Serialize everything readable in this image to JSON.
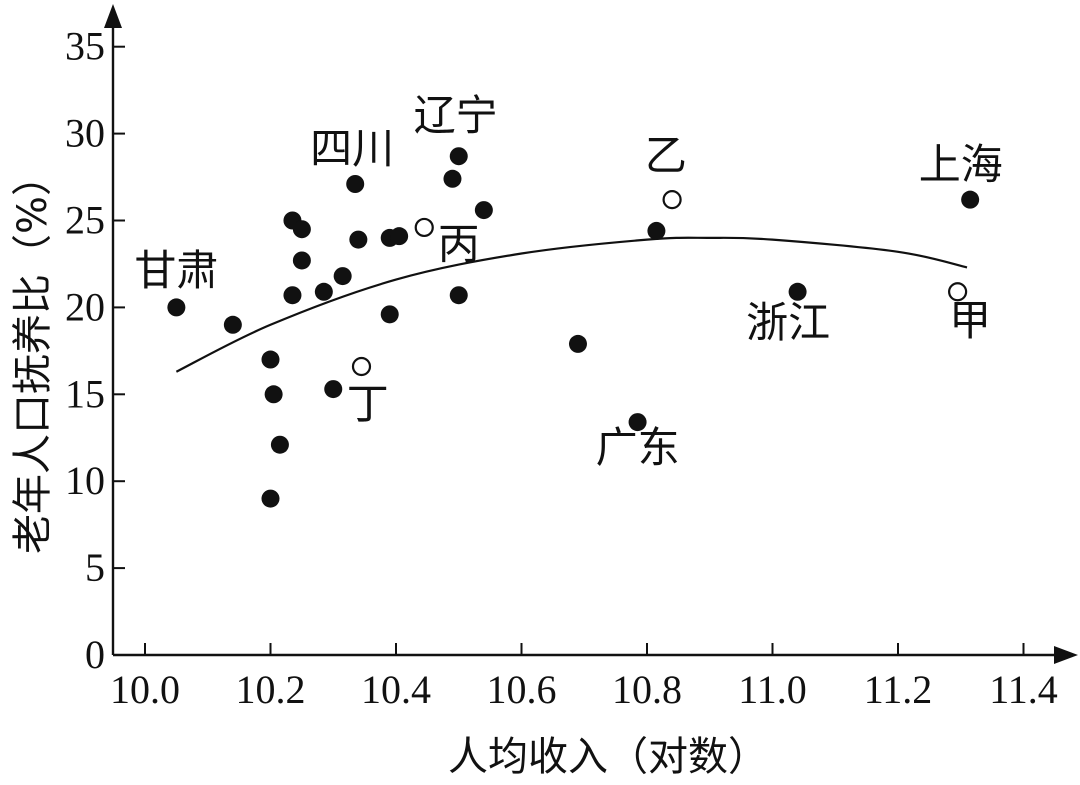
{
  "chart_data": {
    "type": "scatter",
    "title": "",
    "xlabel": "人均收入（对数）",
    "ylabel": "老年人口抚养比（%）",
    "xlim": [
      9.95,
      11.45
    ],
    "ylim": [
      0,
      37
    ],
    "x_ticks": [
      "10.0",
      "10.2",
      "10.4",
      "10.6",
      "10.8",
      "11.0",
      "11.2",
      "11.4"
    ],
    "y_ticks": [
      "0",
      "5",
      "10",
      "15",
      "20",
      "25",
      "30",
      "35"
    ],
    "grid": false,
    "legend": "none",
    "series": [
      {
        "marker": "filled",
        "points": [
          {
            "x": 10.05,
            "y": 20.0
          },
          {
            "x": 10.14,
            "y": 19.0
          },
          {
            "x": 10.2,
            "y": 17.0
          },
          {
            "x": 10.2,
            "y": 9.0
          },
          {
            "x": 10.205,
            "y": 15.0
          },
          {
            "x": 10.215,
            "y": 12.1
          },
          {
            "x": 10.235,
            "y": 25.0
          },
          {
            "x": 10.235,
            "y": 20.7
          },
          {
            "x": 10.25,
            "y": 24.5
          },
          {
            "x": 10.25,
            "y": 22.7
          },
          {
            "x": 10.285,
            "y": 20.9
          },
          {
            "x": 10.3,
            "y": 15.3
          },
          {
            "x": 10.315,
            "y": 21.8
          },
          {
            "x": 10.335,
            "y": 27.1
          },
          {
            "x": 10.34,
            "y": 23.9
          },
          {
            "x": 10.39,
            "y": 19.6
          },
          {
            "x": 10.39,
            "y": 24.0
          },
          {
            "x": 10.405,
            "y": 24.1
          },
          {
            "x": 10.49,
            "y": 27.4
          },
          {
            "x": 10.5,
            "y": 28.7
          },
          {
            "x": 10.5,
            "y": 20.7
          },
          {
            "x": 10.54,
            "y": 25.6
          },
          {
            "x": 10.69,
            "y": 17.9
          },
          {
            "x": 10.785,
            "y": 13.4
          },
          {
            "x": 10.815,
            "y": 24.4
          },
          {
            "x": 11.04,
            "y": 20.9
          },
          {
            "x": 11.315,
            "y": 26.2
          }
        ]
      },
      {
        "marker": "hollow",
        "points": [
          {
            "x": 10.445,
            "y": 24.6
          },
          {
            "x": 10.345,
            "y": 16.6
          },
          {
            "x": 10.84,
            "y": 26.2
          },
          {
            "x": 11.295,
            "y": 20.9
          }
        ]
      }
    ],
    "trend_curve": [
      {
        "x": 10.05,
        "y": 16.3
      },
      {
        "x": 10.2,
        "y": 19.0
      },
      {
        "x": 10.4,
        "y": 21.6
      },
      {
        "x": 10.6,
        "y": 23.1
      },
      {
        "x": 10.8,
        "y": 23.9
      },
      {
        "x": 10.9,
        "y": 24.0
      },
      {
        "x": 11.0,
        "y": 23.9
      },
      {
        "x": 11.2,
        "y": 23.2
      },
      {
        "x": 11.31,
        "y": 22.3
      }
    ],
    "annotations": [
      {
        "text": "甘肃",
        "x": 10.05,
        "y": 21.3
      },
      {
        "text": "四川",
        "x": 10.33,
        "y": 28.3
      },
      {
        "text": "辽宁",
        "x": 10.495,
        "y": 30.2
      },
      {
        "text": "丙",
        "x": 10.5,
        "y": 22.8
      },
      {
        "text": "丁",
        "x": 10.355,
        "y": 13.6
      },
      {
        "text": "乙",
        "x": 10.83,
        "y": 27.9
      },
      {
        "text": "上海",
        "x": 11.3,
        "y": 27.4
      },
      {
        "text": "浙江",
        "x": 11.025,
        "y": 18.3
      },
      {
        "text": "甲",
        "x": 11.315,
        "y": 18.4
      },
      {
        "text": "广东",
        "x": 10.785,
        "y": 11.1
      }
    ]
  }
}
